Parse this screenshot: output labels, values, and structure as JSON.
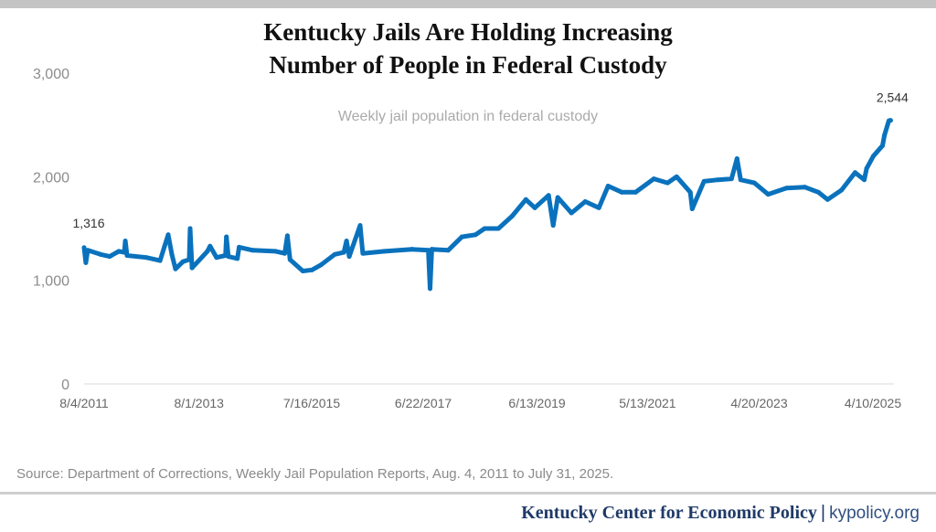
{
  "title_line1": "Kentucky Jails Are Holding Increasing",
  "title_line2": "Number of People in Federal Custody",
  "subtitle": "Weekly jail population in federal custody",
  "source": "Source: Department of Corrections, Weekly Jail Population Reports, Aug. 4, 2011 to July 31, 2025.",
  "footer": {
    "org": "Kentucky Center for Economic Policy",
    "separator": "|",
    "url": "kypolicy.org"
  },
  "chart_data": {
    "type": "line",
    "title": "Kentucky Jails Are Holding Increasing Number of People in Federal Custody",
    "subtitle": "Weekly jail population in federal custody",
    "ylim": [
      0,
      3000
    ],
    "y_ticks": [
      0,
      1000,
      2000,
      3000
    ],
    "y_tick_labels": [
      "0",
      "1,000",
      "2,000",
      "3,000"
    ],
    "x_range": [
      "2011-08-04",
      "2025-07-31"
    ],
    "x_ticks": [
      "2011-08-04",
      "2013-08-01",
      "2015-07-16",
      "2017-06-22",
      "2019-06-13",
      "2021-05-13",
      "2023-04-20",
      "2025-04-10"
    ],
    "x_tick_labels": [
      "8/4/2011",
      "8/1/2013",
      "7/16/2015",
      "6/22/2017",
      "6/13/2019",
      "5/13/2021",
      "4/20/2023",
      "4/10/2025"
    ],
    "grid": false,
    "line_color": "#0a72bd",
    "annotations": [
      {
        "date": "2011-08-04",
        "value": 1316,
        "label": "1,316"
      },
      {
        "date": "2025-07-31",
        "value": 2544,
        "label": "2,544"
      }
    ],
    "series": [
      {
        "x": [
          "2011-08-04",
          "2011-08-15",
          "2011-08-27",
          "2011-11-16",
          "2012-01-13",
          "2012-03-11",
          "2012-04-15",
          "2012-04-21",
          "2012-05-02",
          "2012-09-01",
          "2012-11-27",
          "2012-12-26",
          "2013-01-18",
          "2013-02-10",
          "2013-03-05",
          "2013-04-21",
          "2013-05-31",
          "2013-06-06",
          "2013-06-18",
          "2013-09-23",
          "2013-10-10",
          "2013-11-20",
          "2014-01-16",
          "2014-01-22",
          "2014-02-03",
          "2014-04-01",
          "2014-04-12",
          "2014-07-07",
          "2014-11-29",
          "2015-01-26",
          "2015-02-12",
          "2015-03-01",
          "2015-05-21",
          "2015-07-18",
          "2015-09-14",
          "2015-12-09",
          "2016-02-05",
          "2016-02-22",
          "2016-03-10",
          "2016-05-18",
          "2016-06-04",
          "2016-10-20",
          "2017-04-11",
          "2017-07-24",
          "2017-08-04",
          "2017-08-15",
          "2017-11-27",
          "2018-02-22",
          "2018-05-19",
          "2018-07-16",
          "2018-10-11",
          "2019-01-06",
          "2019-04-03",
          "2019-05-30",
          "2019-08-25",
          "2019-09-23",
          "2019-10-22",
          "2020-01-17",
          "2020-04-13",
          "2020-07-09",
          "2020-09-05",
          "2020-12-01",
          "2021-02-26",
          "2021-06-22",
          "2021-09-17",
          "2021-11-13",
          "2022-02-08",
          "2022-02-20",
          "2022-05-06",
          "2022-08-01",
          "2022-10-27",
          "2022-12-01",
          "2022-12-24",
          "2023-03-21",
          "2023-06-16",
          "2023-10-10",
          "2024-02-03",
          "2024-04-30",
          "2024-06-27",
          "2024-09-22",
          "2024-12-18",
          "2025-02-14",
          "2025-03-01",
          "2025-04-13",
          "2025-06-10",
          "2025-06-22",
          "2025-07-20",
          "2025-07-31"
        ],
        "y": [
          1316,
          1170,
          1290,
          1250,
          1230,
          1280,
          1270,
          1380,
          1240,
          1220,
          1190,
          1330,
          1440,
          1250,
          1110,
          1180,
          1200,
          1500,
          1120,
          1280,
          1330,
          1220,
          1240,
          1420,
          1230,
          1210,
          1320,
          1290,
          1280,
          1260,
          1430,
          1200,
          1090,
          1100,
          1150,
          1250,
          1270,
          1380,
          1230,
          1530,
          1260,
          1280,
          1300,
          1290,
          920,
          1300,
          1290,
          1420,
          1440,
          1500,
          1500,
          1620,
          1780,
          1700,
          1820,
          1530,
          1800,
          1650,
          1760,
          1700,
          1910,
          1850,
          1850,
          1980,
          1940,
          2000,
          1850,
          1690,
          1955,
          1970,
          1980,
          2175,
          1970,
          1940,
          1830,
          1890,
          1900,
          1850,
          1780,
          1870,
          2040,
          1970,
          2080,
          2200,
          2300,
          2400,
          2540,
          2544
        ]
      }
    ]
  }
}
